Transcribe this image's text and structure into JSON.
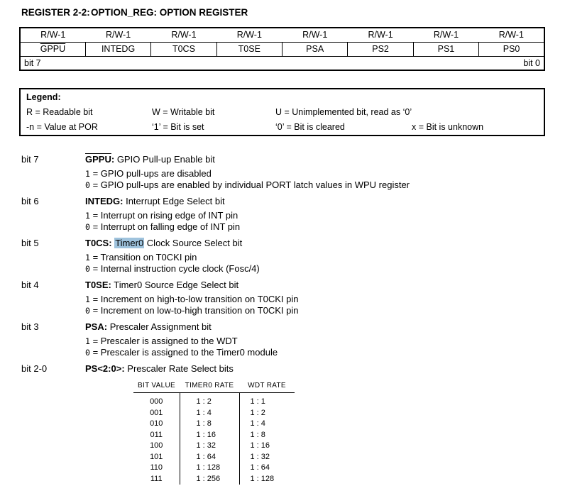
{
  "colors": {
    "highlight": "#9fc3dd",
    "text": "#000000",
    "border": "#000000",
    "background": "#ffffff"
  },
  "symbols": {
    "eq": "=",
    "colon": ":"
  },
  "header": {
    "register_label": "REGISTER 2-2:",
    "register_title": "OPTION_REG: OPTION REGISTER"
  },
  "register_table": {
    "access_row": [
      "R/W-1",
      "R/W-1",
      "R/W-1",
      "R/W-1",
      "R/W-1",
      "R/W-1",
      "R/W-1",
      "R/W-1"
    ],
    "bit_names": [
      "GPPU",
      "INTEDG",
      "T0CS",
      "T0SE",
      "PSA",
      "PS2",
      "PS1",
      "PS0"
    ],
    "bit_msb": "bit 7",
    "bit_lsb": "bit 0"
  },
  "legend": {
    "title": "Legend:",
    "readable": "R = Readable bit",
    "writable": "W = Writable bit",
    "unimplemented": "U = Unimplemented bit, read as ‘0’",
    "por": "-n = Value at POR",
    "bit_set": "‘1’ = Bit is set",
    "bit_cleared": "‘0’ = Bit is cleared",
    "bit_unknown": "x = Bit is unknown"
  },
  "bits": [
    {
      "label": "bit 7",
      "name": "GPPU",
      "desc": "GPIO Pull-up Enable bit",
      "v1": "1",
      "t1": "GPIO pull-ups are disabled",
      "v0": "0",
      "t0": "GPIO pull-ups are enabled by individual PORT latch values in WPU register"
    },
    {
      "label": "bit 6",
      "name": "INTEDG",
      "desc": "Interrupt Edge Select bit",
      "v1": "1",
      "t1": "Interrupt on rising edge of INT pin",
      "v0": "0",
      "t0": "Interrupt on falling edge of INT pin"
    },
    {
      "label": "bit 5",
      "name": "T0CS",
      "highlight": "Timer0",
      "desc": "Clock Source Select bit",
      "v1": "1",
      "t1": "Transition on T0CKI pin",
      "v0": "0",
      "t0": "Internal instruction cycle clock (Fosc/4)"
    },
    {
      "label": "bit 4",
      "name": "T0SE",
      "desc": "Timer0 Source Edge Select bit",
      "v1": "1",
      "t1": "Increment on high-to-low transition on T0CKI pin",
      "v0": "0",
      "t0": "Increment on low-to-high transition on T0CKI pin"
    },
    {
      "label": "bit 3",
      "name": "PSA",
      "desc": "Prescaler Assignment bit",
      "v1": "1",
      "t1": "Prescaler is assigned to the WDT",
      "v0": "0",
      "t0": "Prescaler is assigned to the Timer0 module"
    },
    {
      "label": "bit 2-0",
      "name": "PS<2:0>",
      "desc": "Prescaler Rate Select bits"
    }
  ],
  "prescaler_table": {
    "headers": [
      "BIT VALUE",
      "TIMER0 RATE",
      "WDT RATE"
    ],
    "rows": [
      [
        "000",
        "1 : 2",
        "1 : 1"
      ],
      [
        "001",
        "1 : 4",
        "1 : 2"
      ],
      [
        "010",
        "1 : 8",
        "1 : 4"
      ],
      [
        "011",
        "1 : 16",
        "1 : 8"
      ],
      [
        "100",
        "1 : 32",
        "1 : 16"
      ],
      [
        "101",
        "1 : 64",
        "1 : 32"
      ],
      [
        "110",
        "1 : 128",
        "1 : 64"
      ],
      [
        "111",
        "1 : 256",
        "1 : 128"
      ]
    ]
  }
}
